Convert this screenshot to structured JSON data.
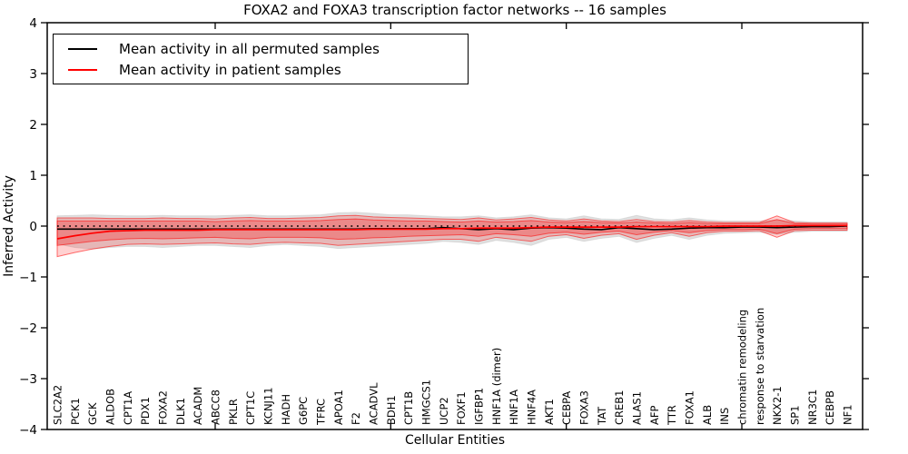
{
  "figure": {
    "title": "FOXA2 and FOXA3 transcription factor networks -- 16 samples",
    "xlabel": "Cellular Entities",
    "ylabel": "Inferred Activity"
  },
  "legend": {
    "items": [
      {
        "label": "Mean activity in all permuted samples",
        "color": "#000000"
      },
      {
        "label": "Mean activity in patient samples",
        "color": "#ff0000"
      }
    ]
  },
  "colors": {
    "permuted_line": "#000000",
    "patient_line": "#ff0000",
    "permuted_band": "#999999",
    "patient_band": "#ff0000",
    "frame": "#000000",
    "background": "#ffffff"
  },
  "chart_data": {
    "type": "line",
    "title": "FOXA2 and FOXA3 transcription factor networks -- 16 samples",
    "xlabel": "Cellular Entities",
    "ylabel": "Inferred Activity",
    "ylim": [
      -4,
      4
    ],
    "grid": false,
    "legend_position": "upper left",
    "zero_line": {
      "y": 0,
      "style": "dotted",
      "color": "#000000"
    },
    "yticks": [
      {
        "v": 4,
        "label": "4"
      },
      {
        "v": 3,
        "label": "3"
      },
      {
        "v": 2,
        "label": "2"
      },
      {
        "v": 1,
        "label": "1"
      },
      {
        "v": 0,
        "label": "0"
      },
      {
        "v": -1,
        "label": "−1"
      },
      {
        "v": -2,
        "label": "−2"
      },
      {
        "v": -3,
        "label": "−3"
      },
      {
        "v": -4,
        "label": "−4"
      }
    ],
    "x_major_tick_indices": [
      9,
      19,
      29,
      39
    ],
    "categories": [
      "SLC2A2",
      "PCK1",
      "GCK",
      "ALDOB",
      "CPT1A",
      "PDX1",
      "FOXA2",
      "DLK1",
      "ACADM",
      "ABCC8",
      "PKLR",
      "CPT1C",
      "KCNJ11",
      "HADH",
      "G6PC",
      "TFRC",
      "APOA1",
      "F2",
      "ACADVL",
      "BDH1",
      "CPT1B",
      "HMGCS1",
      "UCP2",
      "FOXF1",
      "IGFBP1",
      "HNF1A (dimer)",
      "HNF1A",
      "HNF4A",
      "AKT1",
      "CEBPA",
      "FOXA3",
      "TAT",
      "CREB1",
      "ALAS1",
      "AFP",
      "TTR",
      "FOXA1",
      "ALB",
      "INS",
      "chromatin remodeling",
      "response to starvation",
      "NKX2-1",
      "SP1",
      "NR3C1",
      "CEBPB",
      "NF1"
    ],
    "series": [
      {
        "name": "Mean activity in all permuted samples",
        "color": "#000000",
        "width": 1.6,
        "values": [
          -0.06,
          -0.06,
          -0.06,
          -0.06,
          -0.06,
          -0.06,
          -0.06,
          -0.06,
          -0.06,
          -0.06,
          -0.06,
          -0.06,
          -0.06,
          -0.06,
          -0.06,
          -0.06,
          -0.06,
          -0.06,
          -0.05,
          -0.05,
          -0.05,
          -0.05,
          -0.03,
          -0.05,
          -0.07,
          -0.05,
          -0.07,
          -0.04,
          -0.03,
          -0.04,
          -0.06,
          -0.07,
          -0.03,
          -0.05,
          -0.07,
          -0.06,
          -0.04,
          -0.03,
          -0.03,
          -0.02,
          -0.02,
          -0.03,
          -0.02,
          -0.01,
          -0.01,
          0.0
        ]
      },
      {
        "name": "Mean activity in patient samples",
        "color": "#ff0000",
        "width": 1.7,
        "values": [
          -0.25,
          -0.19,
          -0.14,
          -0.1,
          -0.09,
          -0.08,
          -0.08,
          -0.08,
          -0.08,
          -0.07,
          -0.07,
          -0.07,
          -0.07,
          -0.07,
          -0.07,
          -0.07,
          -0.07,
          -0.07,
          -0.06,
          -0.06,
          -0.06,
          -0.06,
          -0.05,
          -0.05,
          -0.04,
          -0.04,
          -0.04,
          -0.03,
          -0.02,
          -0.02,
          -0.02,
          -0.02,
          -0.02,
          -0.01,
          -0.01,
          -0.01,
          -0.01,
          -0.01,
          0.0,
          0.0,
          0.0,
          0.0,
          0.01,
          0.01,
          0.01,
          0.01
        ]
      }
    ],
    "bands": [
      {
        "name": "permuted-range",
        "color": "#999999",
        "opacity": 0.3,
        "edge": "#c8c8c8",
        "upper": [
          0.2,
          0.21,
          0.22,
          0.21,
          0.2,
          0.2,
          0.21,
          0.2,
          0.2,
          0.2,
          0.21,
          0.22,
          0.2,
          0.2,
          0.21,
          0.22,
          0.26,
          0.27,
          0.25,
          0.22,
          0.22,
          0.2,
          0.18,
          0.18,
          0.2,
          0.16,
          0.18,
          0.22,
          0.16,
          0.14,
          0.2,
          0.14,
          0.13,
          0.21,
          0.14,
          0.12,
          0.16,
          0.12,
          0.1,
          0.1,
          0.1,
          0.12,
          0.1,
          0.08,
          0.08,
          0.08
        ],
        "lower": [
          -0.35,
          -0.42,
          -0.45,
          -0.42,
          -0.4,
          -0.4,
          -0.42,
          -0.4,
          -0.38,
          -0.38,
          -0.4,
          -0.42,
          -0.38,
          -0.36,
          -0.38,
          -0.4,
          -0.44,
          -0.42,
          -0.4,
          -0.38,
          -0.36,
          -0.34,
          -0.3,
          -0.32,
          -0.36,
          -0.28,
          -0.32,
          -0.38,
          -0.26,
          -0.22,
          -0.3,
          -0.24,
          -0.2,
          -0.32,
          -0.24,
          -0.18,
          -0.26,
          -0.18,
          -0.14,
          -0.13,
          -0.12,
          -0.16,
          -0.12,
          -0.1,
          -0.1,
          -0.1
        ]
      },
      {
        "name": "patient-range-outer",
        "color": "#ff0000",
        "opacity": 0.18,
        "edge": "#ff0000",
        "upper": [
          0.16,
          0.16,
          0.16,
          0.15,
          0.15,
          0.15,
          0.16,
          0.15,
          0.15,
          0.14,
          0.16,
          0.17,
          0.15,
          0.15,
          0.16,
          0.17,
          0.2,
          0.21,
          0.18,
          0.17,
          0.16,
          0.15,
          0.14,
          0.13,
          0.16,
          0.12,
          0.14,
          0.17,
          0.12,
          0.1,
          0.14,
          0.1,
          0.09,
          0.13,
          0.09,
          0.08,
          0.11,
          0.08,
          0.07,
          0.07,
          0.07,
          0.2,
          0.07,
          0.06,
          0.06,
          0.06
        ],
        "lower": [
          -0.6,
          -0.52,
          -0.45,
          -0.4,
          -0.36,
          -0.35,
          -0.36,
          -0.35,
          -0.34,
          -0.33,
          -0.35,
          -0.36,
          -0.33,
          -0.32,
          -0.33,
          -0.34,
          -0.38,
          -0.36,
          -0.34,
          -0.32,
          -0.3,
          -0.28,
          -0.26,
          -0.26,
          -0.3,
          -0.22,
          -0.26,
          -0.3,
          -0.2,
          -0.17,
          -0.24,
          -0.18,
          -0.15,
          -0.26,
          -0.18,
          -0.13,
          -0.2,
          -0.13,
          -0.1,
          -0.1,
          -0.09,
          -0.22,
          -0.09,
          -0.08,
          -0.08,
          -0.08
        ]
      },
      {
        "name": "patient-range-inner",
        "color": "#ff0000",
        "opacity": 0.25,
        "edge": "#ff0000",
        "upper": [
          0.1,
          0.1,
          0.1,
          0.1,
          0.1,
          0.1,
          0.1,
          0.1,
          0.1,
          0.09,
          0.1,
          0.11,
          0.1,
          0.1,
          0.1,
          0.11,
          0.13,
          0.14,
          0.12,
          0.11,
          0.1,
          0.1,
          0.09,
          0.08,
          0.1,
          0.08,
          0.09,
          0.11,
          0.08,
          0.07,
          0.09,
          0.07,
          0.06,
          0.08,
          0.06,
          0.05,
          0.07,
          0.05,
          0.05,
          0.05,
          0.05,
          0.13,
          0.05,
          0.04,
          0.04,
          0.04
        ],
        "lower": [
          -0.38,
          -0.34,
          -0.3,
          -0.27,
          -0.25,
          -0.24,
          -0.25,
          -0.24,
          -0.23,
          -0.22,
          -0.24,
          -0.25,
          -0.22,
          -0.22,
          -0.22,
          -0.23,
          -0.26,
          -0.25,
          -0.23,
          -0.22,
          -0.2,
          -0.19,
          -0.18,
          -0.17,
          -0.2,
          -0.15,
          -0.17,
          -0.2,
          -0.14,
          -0.12,
          -0.16,
          -0.12,
          -0.1,
          -0.17,
          -0.12,
          -0.09,
          -0.13,
          -0.09,
          -0.07,
          -0.07,
          -0.06,
          -0.15,
          -0.06,
          -0.05,
          -0.05,
          -0.05
        ]
      }
    ]
  }
}
